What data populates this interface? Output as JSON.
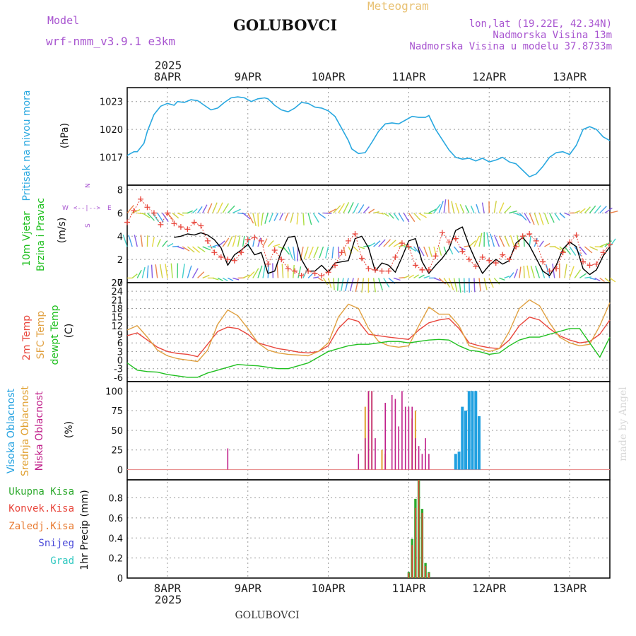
{
  "header": {
    "model_label": "Model",
    "model_name": "wrf-nmm_v3.9.1 e3km",
    "title": "Meteogram",
    "station": "GOLUBOVCI",
    "coords": "lon,lat (19.22E, 42.34N)",
    "altitude": "Nadmorska Visina 13m",
    "model_altitude": "Nadmorska Visina u modelu 37.8733m",
    "year": "2025",
    "footer_station": "GOLUBOVCI",
    "credit": "made by Angel"
  },
  "colors": {
    "pressure": "#29a8e0",
    "wind_speed": "#000000",
    "gust": "#e8463c",
    "temp2m": "#e8463c",
    "sfc_temp": "#e0a040",
    "dewpoint": "#20c020",
    "cloud_high": "#20a0e0",
    "cloud_mid": "#e0a030",
    "cloud_low": "#c0208a",
    "precip_total": "#2eaa2e",
    "precip_conv": "#e8463c",
    "precip_frozen": "#e87a30",
    "snow": "#4848d8",
    "hail": "#30c8c0"
  },
  "days": [
    "8APR",
    "9APR",
    "10APR",
    "11APR",
    "12APR",
    "13APR"
  ],
  "panels": {
    "pressure": {
      "label": "Pritisak na nivou mora",
      "unit": "(hPa)"
    },
    "wind": {
      "label_1": "10m Vjetar",
      "label_2": "Brzina i Pravac",
      "unit": "(m/s)",
      "compass_n": "N",
      "compass_s": "S",
      "compass_e": "E",
      "compass_w": "W",
      "compass_line": "<--|-->"
    },
    "temp": {
      "label_1": "2m Temp",
      "label_2": "SFC Temp",
      "label_3": "dewpt Temp",
      "unit": "(C)"
    },
    "cloud": {
      "label_1": "Visoka Oblacnost",
      "label_2": "Srednja Oblacnost",
      "label_3": "Niska Oblacnost",
      "unit": "(%)"
    },
    "precip": {
      "legend": [
        "Ukupna Kisa",
        "Konvek.Kisa",
        "Zaledj.Kisa",
        "Snijeg",
        "Grad"
      ],
      "unit": "1hr Precip (mm)"
    }
  },
  "chart_data": [
    {
      "id": "pressure",
      "type": "line",
      "ylabel": "Pritisak na nivou mora (hPa)",
      "xlim": [
        0,
        144
      ],
      "ylim": [
        1014,
        1024.5
      ],
      "yticks": [
        1017,
        1020,
        1023
      ],
      "x": [
        0,
        2,
        3,
        5,
        6,
        8,
        10,
        12,
        14,
        15,
        17,
        19,
        21,
        23,
        25,
        27,
        29,
        31,
        33,
        35,
        37,
        39,
        41,
        42,
        44,
        46,
        48,
        50,
        52,
        54,
        56,
        58,
        60,
        62,
        64,
        66,
        67,
        69,
        71,
        73,
        75,
        77,
        79,
        81,
        83,
        85,
        87,
        89,
        90,
        92,
        94,
        96,
        98,
        100,
        102,
        104,
        106,
        108,
        110,
        112,
        114,
        116,
        118,
        120,
        122,
        124,
        126,
        128,
        130,
        132,
        134,
        136,
        138,
        140,
        142,
        144
      ],
      "y": [
        1017.2,
        1017.6,
        1017.6,
        1018.5,
        1019.8,
        1021.6,
        1022.5,
        1022.8,
        1022.6,
        1023.0,
        1022.9,
        1023.2,
        1023.1,
        1022.6,
        1022.1,
        1022.3,
        1022.9,
        1023.4,
        1023.5,
        1023.4,
        1023.0,
        1023.3,
        1023.4,
        1023.3,
        1022.6,
        1022.1,
        1021.9,
        1022.3,
        1022.9,
        1022.8,
        1022.4,
        1022.3,
        1022.0,
        1021.4,
        1020.1,
        1018.8,
        1017.9,
        1017.4,
        1017.5,
        1018.6,
        1019.8,
        1020.6,
        1020.7,
        1020.6,
        1021.0,
        1021.4,
        1021.3,
        1021.3,
        1021.5,
        1020.0,
        1018.9,
        1017.8,
        1017.0,
        1016.8,
        1016.9,
        1016.6,
        1016.9,
        1016.5,
        1016.7,
        1017.0,
        1016.5,
        1016.3,
        1015.6,
        1014.9,
        1015.2,
        1016.0,
        1017.0,
        1017.5,
        1017.6,
        1017.3,
        1018.3,
        1020.0,
        1020.3,
        1020.0,
        1019.2,
        1018.8
      ]
    },
    {
      "id": "wind",
      "type": "line",
      "ylabel": "10m Vjetar Brzina i Pravac (m/s)",
      "xlim": [
        0,
        144
      ],
      "ylim": [
        0,
        8.4
      ],
      "yticks": [
        0,
        2,
        4,
        6,
        8
      ],
      "series": [
        {
          "name": "speed",
          "x": [
            14,
            16,
            18,
            20,
            22,
            24,
            26,
            28,
            30,
            32,
            34,
            36,
            38,
            40,
            42,
            44,
            46,
            48,
            50,
            52,
            54,
            56,
            58,
            60,
            62,
            64,
            66,
            68,
            70,
            72,
            74,
            76,
            78,
            80,
            82,
            84,
            86,
            88,
            90,
            92,
            94,
            96,
            98,
            100,
            102,
            104,
            106,
            108,
            110,
            112,
            114,
            116,
            118,
            120,
            122,
            124,
            126,
            128,
            130,
            132,
            134,
            136,
            138,
            140,
            142,
            144
          ],
          "y": [
            3.9,
            4.0,
            4.2,
            4.1,
            4.3,
            4.1,
            3.7,
            3.0,
            1.5,
            2.4,
            2.8,
            3.3,
            2.4,
            2.6,
            0.8,
            1.0,
            2.7,
            3.9,
            4.0,
            2.0,
            1.0,
            1.0,
            1.5,
            0.9,
            1.7,
            1.8,
            1.9,
            3.8,
            4.0,
            3.0,
            1.0,
            1.7,
            1.5,
            0.9,
            2.2,
            3.6,
            3.8,
            1.8,
            0.8,
            1.5,
            2.1,
            2.9,
            4.5,
            4.8,
            3.2,
            1.9,
            0.8,
            1.5,
            2.0,
            1.6,
            1.9,
            3.4,
            3.9,
            3.2,
            2.1,
            1.0,
            0.6,
            1.5,
            2.9,
            3.5,
            3.1,
            1.2,
            0.7,
            1.1,
            2.3,
            3.1
          ]
        },
        {
          "name": "gust",
          "x": [
            0,
            2,
            4,
            6,
            8,
            10,
            12,
            14,
            16,
            18,
            20,
            22,
            24,
            26,
            28,
            30,
            32,
            34,
            36,
            38,
            40,
            42,
            44,
            46,
            48,
            50,
            52,
            54,
            56,
            58,
            60,
            62,
            64,
            66,
            68,
            70,
            72,
            74,
            76,
            78,
            80,
            82,
            84,
            86,
            88,
            90,
            92,
            94,
            96,
            98,
            100,
            102,
            104,
            106,
            108,
            110,
            112,
            114,
            116,
            118,
            120,
            122,
            124,
            126,
            128,
            130,
            132,
            134,
            136,
            138,
            140,
            142,
            144
          ],
          "y": [
            5.2,
            6.2,
            7.2,
            6.5,
            6.0,
            5.0,
            6.0,
            5.1,
            4.8,
            4.6,
            5.2,
            4.9,
            3.6,
            2.6,
            2.2,
            2.0,
            1.9,
            2.6,
            3.7,
            3.9,
            3.6,
            1.6,
            2.8,
            2.0,
            1.2,
            1.0,
            0.6,
            1.0,
            0.8,
            0.6,
            0.9,
            1.5,
            2.6,
            3.6,
            4.2,
            2.1,
            1.2,
            1.1,
            1.0,
            1.0,
            2.2,
            3.4,
            3.1,
            1.5,
            1.1,
            1.1,
            2.3,
            4.3,
            3.5,
            3.8,
            2.7,
            2.0,
            1.4,
            2.2,
            1.9,
            1.7,
            2.4,
            2.0,
            3.1,
            4.0,
            4.2,
            3.6,
            1.8,
            1.0,
            1.2,
            2.6,
            3.5,
            4.1,
            1.8,
            1.5,
            1.6,
            2.6,
            3.3
          ]
        }
      ]
    },
    {
      "id": "temperature",
      "type": "line",
      "ylabel": "Temp (C)",
      "xlim": [
        0,
        144
      ],
      "ylim": [
        -7.5,
        27
      ],
      "yticks": [
        -6,
        -3,
        0,
        3,
        6,
        9,
        12,
        15,
        18,
        21,
        24,
        27
      ],
      "series": [
        {
          "name": "2m Temp",
          "x": [
            0,
            3,
            6,
            9,
            12,
            15,
            18,
            21,
            24,
            27,
            30,
            33,
            36,
            39,
            42,
            45,
            48,
            51,
            54,
            57,
            60,
            63,
            66,
            69,
            72,
            75,
            78,
            81,
            84,
            87,
            90,
            93,
            96,
            99,
            102,
            105,
            108,
            111,
            114,
            117,
            120,
            123,
            126,
            129,
            132,
            135,
            138,
            141,
            144
          ],
          "y": [
            8.5,
            9.5,
            7.0,
            4.5,
            3.0,
            2.3,
            2.0,
            1.2,
            5.5,
            10.0,
            11.5,
            11.0,
            9.0,
            6.0,
            5.0,
            4.0,
            3.5,
            2.8,
            2.5,
            3.0,
            5.0,
            11.0,
            14.5,
            13.5,
            9.0,
            8.5,
            8.0,
            7.6,
            7.2,
            10.5,
            13.0,
            14.0,
            14.5,
            11.0,
            6.0,
            5.0,
            4.3,
            4.0,
            7.0,
            12.0,
            15.0,
            14.0,
            11.0,
            8.5,
            7.0,
            6.0,
            6.5,
            9.0,
            14.0
          ]
        },
        {
          "name": "SFC Temp",
          "x": [
            0,
            3,
            6,
            9,
            12,
            15,
            18,
            21,
            24,
            27,
            30,
            33,
            36,
            39,
            42,
            45,
            48,
            51,
            54,
            57,
            60,
            63,
            66,
            69,
            72,
            75,
            78,
            81,
            84,
            87,
            90,
            93,
            96,
            99,
            102,
            105,
            108,
            111,
            114,
            117,
            120,
            123,
            126,
            129,
            132,
            135,
            138,
            141,
            144
          ],
          "y": [
            10.5,
            12.0,
            8.0,
            3.5,
            1.5,
            0.5,
            0.0,
            -0.5,
            3.5,
            12.5,
            17.5,
            15.5,
            11.0,
            6.0,
            3.5,
            2.5,
            2.0,
            1.8,
            1.5,
            3.0,
            6.0,
            15.0,
            19.5,
            18.0,
            11.0,
            6.5,
            5.0,
            4.5,
            5.0,
            12.0,
            18.5,
            16.0,
            16.0,
            12.0,
            5.0,
            4.0,
            3.0,
            4.0,
            10.0,
            18.0,
            21.0,
            19.0,
            13.0,
            8.0,
            6.0,
            5.0,
            5.5,
            12.0,
            20.0
          ]
        },
        {
          "name": "dewpt Temp",
          "x": [
            0,
            3,
            6,
            9,
            12,
            15,
            18,
            21,
            24,
            27,
            30,
            33,
            36,
            39,
            42,
            45,
            48,
            51,
            54,
            57,
            60,
            63,
            66,
            69,
            72,
            75,
            78,
            81,
            84,
            87,
            90,
            93,
            96,
            99,
            102,
            105,
            108,
            111,
            114,
            117,
            120,
            123,
            126,
            129,
            132,
            135,
            138,
            141,
            144
          ],
          "y": [
            -1.0,
            -3.5,
            -4.0,
            -4.2,
            -5.0,
            -5.5,
            -6.0,
            -6.0,
            -4.5,
            -3.5,
            -2.5,
            -1.5,
            -1.8,
            -2.0,
            -2.5,
            -3.0,
            -3.0,
            -2.0,
            -1.0,
            1.0,
            3.0,
            4.0,
            5.0,
            5.5,
            5.5,
            6.0,
            6.5,
            6.5,
            6.0,
            6.5,
            7.0,
            7.2,
            7.0,
            5.0,
            3.5,
            3.0,
            2.0,
            2.5,
            5.0,
            7.0,
            8.0,
            8.0,
            9.0,
            10.0,
            11.0,
            11.0,
            6.0,
            1.0,
            8.0
          ]
        }
      ]
    },
    {
      "id": "cloud",
      "type": "bar",
      "ylabel": "Oblacnost (%)",
      "xlim": [
        0,
        144
      ],
      "ylim": [
        -13,
        112
      ],
      "yticks": [
        0,
        25,
        50,
        75,
        100
      ],
      "series": [
        {
          "name": "Visoka Oblacnost",
          "x": [
            98,
            99,
            100,
            101,
            102,
            103,
            104,
            105
          ],
          "values": [
            20,
            23,
            80,
            75,
            100,
            100,
            100,
            68
          ]
        },
        {
          "name": "Srednja Oblacnost",
          "x": [
            71,
            72,
            73,
            76,
            77,
            85,
            86
          ],
          "values": [
            80,
            100,
            100,
            25,
            20,
            65,
            75
          ]
        },
        {
          "name": "Niska Oblacnost",
          "x": [
            30,
            69,
            71,
            72,
            73,
            74,
            77,
            79,
            80,
            81,
            82,
            83,
            84,
            85,
            86,
            87,
            88,
            89,
            90
          ],
          "values": [
            27,
            20,
            40,
            100,
            100,
            40,
            85,
            95,
            90,
            55,
            100,
            80,
            80,
            80,
            40,
            30,
            20,
            40,
            20
          ]
        }
      ]
    },
    {
      "id": "precip",
      "type": "bar",
      "ylabel": "1hr Precip (mm)",
      "xlim": [
        0,
        144
      ],
      "ylim": [
        0,
        0.98
      ],
      "yticks": [
        0,
        0.2,
        0.4,
        0.6,
        0.8
      ],
      "series": [
        {
          "name": "Ukupna Kisa",
          "x": [
            84,
            85,
            86,
            87,
            88,
            89,
            90
          ],
          "values": [
            0.06,
            0.39,
            0.79,
            0.98,
            0.69,
            0.15,
            0.06
          ]
        },
        {
          "name": "Konvek.Kisa",
          "x": [
            84,
            85,
            86,
            87,
            88,
            89,
            90
          ],
          "values": [
            0.05,
            0.33,
            0.7,
            0.98,
            0.65,
            0.12,
            0.05
          ]
        }
      ]
    }
  ]
}
